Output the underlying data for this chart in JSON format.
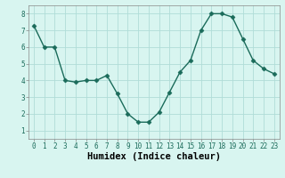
{
  "x": [
    0,
    1,
    2,
    3,
    4,
    5,
    6,
    7,
    8,
    9,
    10,
    11,
    12,
    13,
    14,
    15,
    16,
    17,
    18,
    19,
    20,
    21,
    22,
    23
  ],
  "y": [
    7.3,
    6.0,
    6.0,
    4.0,
    3.9,
    4.0,
    4.0,
    4.3,
    3.2,
    2.0,
    1.5,
    1.5,
    2.1,
    3.3,
    4.5,
    5.2,
    7.0,
    8.0,
    8.0,
    7.8,
    6.5,
    5.2,
    4.7,
    4.4
  ],
  "line_color": "#1a6b5a",
  "marker": "D",
  "marker_size": 2.5,
  "bg_color": "#d8f5f0",
  "grid_color": "#b0ddd8",
  "xlabel": "Humidex (Indice chaleur)",
  "xlim": [
    -0.5,
    23.5
  ],
  "ylim": [
    0.5,
    8.5
  ],
  "yticks": [
    1,
    2,
    3,
    4,
    5,
    6,
    7,
    8
  ],
  "xticks": [
    0,
    1,
    2,
    3,
    4,
    5,
    6,
    7,
    8,
    9,
    10,
    11,
    12,
    13,
    14,
    15,
    16,
    17,
    18,
    19,
    20,
    21,
    22,
    23
  ],
  "tick_label_fontsize": 5.5,
  "xlabel_fontsize": 7.5,
  "xlabel_fontweight": "bold"
}
